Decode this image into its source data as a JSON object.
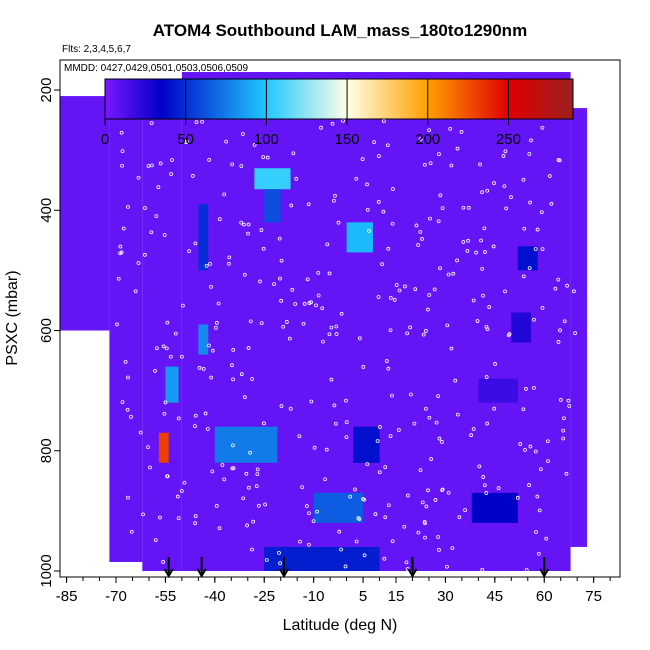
{
  "chart_data": {
    "type": "heatmap",
    "title": "ATOM4 Southbound LAM_mass_180to1290nm",
    "subtitle_flights": "Flts: 2,3,4,5,6,7",
    "subtitle_dates": "MMDD: 0427,0429,0501,0503,0506,0509",
    "xlabel": "Latitude (deg N)",
    "ylabel": "PSXC (mbar)",
    "xlim": [
      -87,
      83
    ],
    "ylim": [
      1010,
      150
    ],
    "x_ticks": [
      -85,
      -70,
      -55,
      -40,
      -25,
      -10,
      5,
      15,
      30,
      45,
      60,
      75
    ],
    "x_tick_labels": [
      "-85",
      "-70",
      "-55",
      "-40",
      "-25",
      "-10",
      "5",
      "15",
      "30",
      "45",
      "60",
      "75"
    ],
    "y_ticks": [
      200,
      400,
      600,
      800,
      1000
    ],
    "y_tick_labels": [
      "200",
      "400",
      "600",
      "800",
      "1000"
    ],
    "colorbar": {
      "range": [
        0,
        290
      ],
      "ticks": [
        0,
        50,
        100,
        150,
        200,
        250
      ],
      "tick_labels": [
        "0",
        "50",
        "100",
        "150",
        "200",
        "250"
      ],
      "colors": [
        "#7a18ff",
        "#0000c8",
        "#1ec8ff",
        "#ffffe6",
        "#ffa000",
        "#e00000",
        "#9b2020"
      ],
      "color_stops": [
        0,
        35,
        100,
        150,
        200,
        250,
        290
      ]
    },
    "background_value": 6,
    "coverage": [
      {
        "lat_min": -87,
        "lat_max": -72,
        "p_top": 210,
        "p_bottom": 600
      },
      {
        "lat_min": -72,
        "lat_max": -62,
        "p_top": 210,
        "p_bottom": 985
      },
      {
        "lat_min": -62,
        "lat_max": -50,
        "p_top": 205,
        "p_bottom": 1000
      },
      {
        "lat_min": -50,
        "lat_max": 68,
        "p_top": 170,
        "p_bottom": 1000
      },
      {
        "lat_min": 68,
        "lat_max": 73,
        "p_top": 230,
        "p_bottom": 960
      }
    ],
    "features": [
      {
        "lat_min": -28,
        "lat_max": -17,
        "p_min": 330,
        "p_max": 365,
        "value": 105
      },
      {
        "lat_min": -25,
        "lat_max": -20,
        "p_min": 365,
        "p_max": 420,
        "value": 60
      },
      {
        "lat_min": 0,
        "lat_max": 8,
        "p_min": 420,
        "p_max": 470,
        "value": 95
      },
      {
        "lat_min": -45,
        "lat_max": -42,
        "p_min": 390,
        "p_max": 500,
        "value": 50
      },
      {
        "lat_min": -45,
        "lat_max": -42,
        "p_min": 590,
        "p_max": 640,
        "value": 80
      },
      {
        "lat_min": -55,
        "lat_max": -51,
        "p_min": 660,
        "p_max": 720,
        "value": 85
      },
      {
        "lat_min": -57,
        "lat_max": -54,
        "p_min": 770,
        "p_max": 820,
        "value": 230
      },
      {
        "lat_min": -40,
        "lat_max": -21,
        "p_min": 760,
        "p_max": 820,
        "value": 75
      },
      {
        "lat_min": 2,
        "lat_max": 10,
        "p_min": 760,
        "p_max": 820,
        "value": 40
      },
      {
        "lat_min": -10,
        "lat_max": 5,
        "p_min": 870,
        "p_max": 920,
        "value": 65
      },
      {
        "lat_min": 38,
        "lat_max": 52,
        "p_min": 870,
        "p_max": 920,
        "value": 35
      },
      {
        "lat_min": -25,
        "lat_max": 10,
        "p_min": 960,
        "p_max": 1000,
        "value": 45
      },
      {
        "lat_min": 52,
        "lat_max": 58,
        "p_min": 460,
        "p_max": 500,
        "value": 40
      },
      {
        "lat_min": 50,
        "lat_max": 56,
        "p_min": 570,
        "p_max": 620,
        "value": 25
      },
      {
        "lat_min": 40,
        "lat_max": 52,
        "p_min": 680,
        "p_max": 720,
        "value": 18
      }
    ],
    "arrows_lat": [
      -54,
      -44,
      -19,
      20,
      60
    ]
  }
}
